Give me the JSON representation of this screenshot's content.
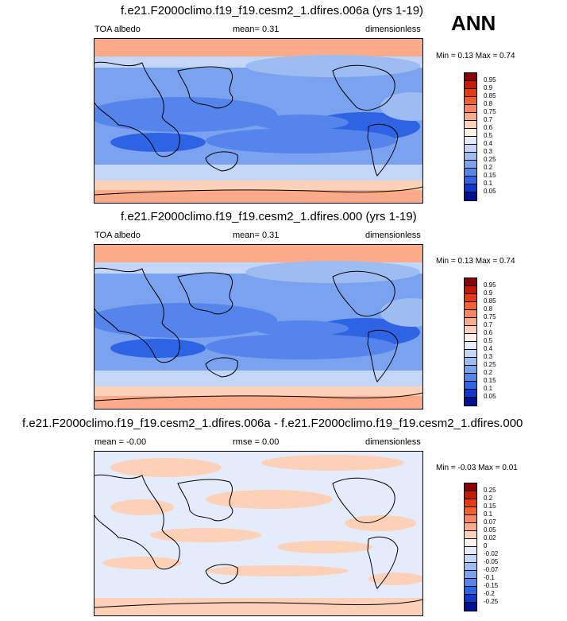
{
  "season": "ANN",
  "panels": [
    {
      "title": "f.e21.F2000climo.f19_f19.cesm2_1.dfires.006a (yrs 1-19)",
      "left": "TOA albedo",
      "center": "mean=  0.31",
      "right": "dimensionless",
      "minmax": "Min =  0.13 Max =  0.74",
      "kind": "abs"
    },
    {
      "title": "f.e21.F2000climo.f19_f19.cesm2_1.dfires.000 (yrs 1-19)",
      "left": "TOA albedo",
      "center": "mean=  0.31",
      "right": "dimensionless",
      "minmax": "Min =  0.13 Max =  0.74",
      "kind": "abs"
    },
    {
      "title": "f.e21.F2000climo.f19_f19.cesm2_1.dfires.006a - f.e21.F2000climo.f19_f19.cesm2_1.dfires.000",
      "left": "mean = -0.00",
      "center": "rmse =  0.00",
      "right": "dimensionless",
      "minmax": "Min = -0.03 Max =  0.01",
      "kind": "diff"
    }
  ],
  "colorbar_abs": {
    "labels": [
      "0.95",
      "0.9",
      "0.85",
      "0.8",
      "0.75",
      "0.7",
      "0.6",
      "0.5",
      "0.4",
      "0.3",
      "0.25",
      "0.2",
      "0.15",
      "0.1",
      "0.05"
    ],
    "colors": [
      "#8b0000",
      "#c41b00",
      "#e83a10",
      "#f5612f",
      "#f98660",
      "#fbab8a",
      "#fdd0b8",
      "#fff2e8",
      "#e4ecfb",
      "#c3d6f7",
      "#9dbcf2",
      "#7aa2ef",
      "#5585ea",
      "#2e63e3",
      "#0f38cc",
      "#00128f"
    ]
  },
  "colorbar_diff": {
    "labels": [
      "0.25",
      "0.2",
      "0.15",
      "0.1",
      "0.07",
      "0.05",
      "0.02",
      "0",
      "-0.02",
      "-0.05",
      "-0.07",
      "-0.1",
      "-0.15",
      "-0.2",
      "-0.25"
    ],
    "colors": [
      "#8b0000",
      "#c41b00",
      "#e83a10",
      "#f5612f",
      "#f98660",
      "#fbab8a",
      "#fdd0b8",
      "#fff2e8",
      "#e4ecfb",
      "#c3d6f7",
      "#9dbcf2",
      "#7aa2ef",
      "#5585ea",
      "#2e63e3",
      "#0f38cc",
      "#00128f"
    ]
  },
  "chart_data": [
    {
      "type": "heatmap",
      "title": "f.e21.F2000climo.f19_f19.cesm2_1.dfires.006a (yrs 1-19)",
      "variable": "TOA albedo",
      "units": "dimensionless",
      "mean": 0.31,
      "min": 0.13,
      "max": 0.74,
      "levels": [
        0.05,
        0.1,
        0.15,
        0.2,
        0.25,
        0.3,
        0.4,
        0.5,
        0.6,
        0.7,
        0.75,
        0.8,
        0.85,
        0.9,
        0.95
      ]
    },
    {
      "type": "heatmap",
      "title": "f.e21.F2000climo.f19_f19.cesm2_1.dfires.000 (yrs 1-19)",
      "variable": "TOA albedo",
      "units": "dimensionless",
      "mean": 0.31,
      "min": 0.13,
      "max": 0.74,
      "levels": [
        0.05,
        0.1,
        0.15,
        0.2,
        0.25,
        0.3,
        0.4,
        0.5,
        0.6,
        0.7,
        0.75,
        0.8,
        0.85,
        0.9,
        0.95
      ]
    },
    {
      "type": "heatmap",
      "title": "f.e21.F2000climo.f19_f19.cesm2_1.dfires.006a - f.e21.F2000climo.f19_f19.cesm2_1.dfires.000",
      "units": "dimensionless",
      "mean": -0.0,
      "rmse": 0.0,
      "min": -0.03,
      "max": 0.01,
      "levels": [
        -0.25,
        -0.2,
        -0.15,
        -0.1,
        -0.07,
        -0.05,
        -0.02,
        0,
        0.02,
        0.05,
        0.07,
        0.1,
        0.15,
        0.2,
        0.25
      ]
    }
  ]
}
